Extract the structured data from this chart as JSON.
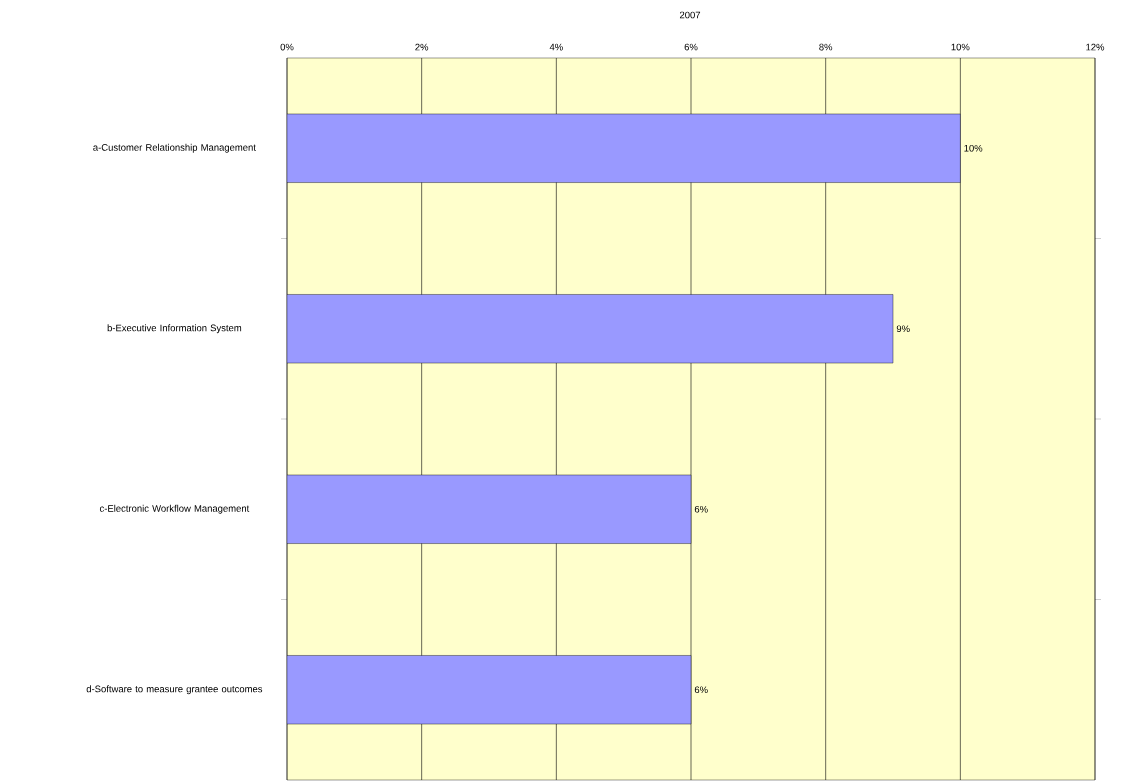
{
  "chart_data": {
    "type": "bar",
    "orientation": "horizontal",
    "title": "2007",
    "categories": [
      "a-Customer Relationship Management",
      "b-Executive Information System",
      "c-Electronic Workflow Management",
      "d-Software to measure grantee outcomes"
    ],
    "values": [
      10,
      9,
      6,
      6
    ],
    "value_labels": [
      "10%",
      "9%",
      "6%",
      "6%"
    ],
    "color": "#9999ff",
    "xlim": [
      0,
      12
    ],
    "xticks": [
      {
        "value": 0,
        "label": "0%"
      },
      {
        "value": 2,
        "label": "2%"
      },
      {
        "value": 4,
        "label": "4%"
      },
      {
        "value": 6,
        "label": "6%"
      },
      {
        "value": 8,
        "label": "8%"
      },
      {
        "value": 10,
        "label": "10%"
      },
      {
        "value": 12,
        "label": "12%"
      }
    ],
    "grid": "x"
  }
}
